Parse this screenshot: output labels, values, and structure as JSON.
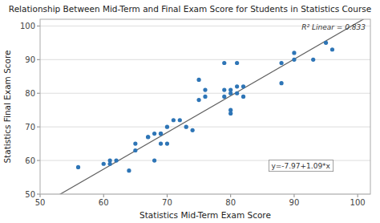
{
  "chart_data": {
    "type": "scatter",
    "title": "Relationship Between Mid-Term and Final Exam Score for Students in Statistics Course",
    "xlabel": "Statistics Mid-Term Exam Score",
    "ylabel": "Statistics Final Exam Score",
    "x": [
      56,
      60,
      61,
      61,
      62,
      64,
      65,
      65,
      67,
      67,
      68,
      68,
      69,
      69,
      69,
      70,
      70,
      71,
      72,
      73,
      74,
      75,
      75,
      76,
      76,
      79,
      79,
      79,
      80,
      80,
      80,
      80,
      81,
      81,
      81,
      82,
      82,
      88,
      88,
      90,
      90,
      93,
      95,
      96
    ],
    "values": [
      58,
      59,
      59,
      60,
      60,
      57,
      63,
      65,
      67,
      67,
      60,
      68,
      68,
      68,
      65,
      65,
      70,
      72,
      72,
      70,
      69,
      78,
      84,
      79,
      81,
      79,
      81,
      89,
      74,
      75,
      80,
      81,
      80,
      82,
      89,
      79,
      82,
      83,
      89,
      90,
      92,
      90,
      95,
      93
    ],
    "color": "#2e75b6",
    "regression": {
      "intercept": -7.97,
      "slope": 1.09,
      "color": "#606060"
    },
    "annotations": [
      "y=-7.97+1.09*x",
      "R² Linear = 0.833"
    ],
    "xlim": [
      50,
      102
    ],
    "ylim": [
      50,
      102
    ],
    "xticks": [
      50,
      60,
      70,
      80,
      90,
      100
    ],
    "yticks": [
      50,
      60,
      70,
      80,
      90,
      100
    ],
    "grid": "y"
  }
}
